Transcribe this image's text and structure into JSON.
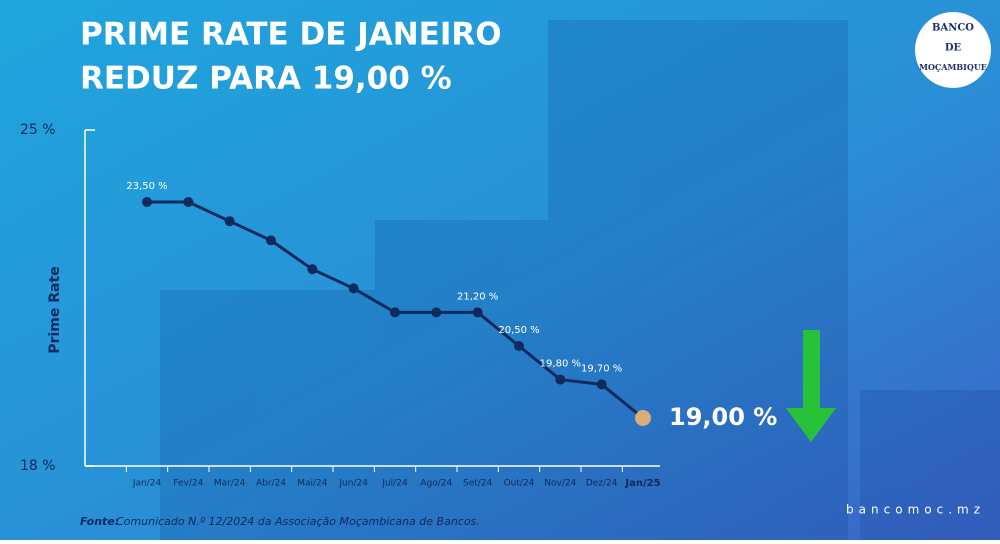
{
  "chart_data": {
    "type": "line",
    "title": [
      "PRIME RATE DE JANEIRO",
      "REDUZ PARA 19,00 %"
    ],
    "y_label": "Prime Rate",
    "categories": [
      "Jan/24",
      "Fev/24",
      "Mar/24",
      "Abr/24",
      "Mai/24",
      "Jun/24",
      "Jul/24",
      "Ago/24",
      "Set/24",
      "Out/24",
      "Nov/24",
      "Dez/24",
      "Jan/25"
    ],
    "values": [
      23.5,
      23.5,
      23.1,
      22.7,
      22.1,
      21.7,
      21.2,
      21.2,
      21.2,
      20.5,
      19.8,
      19.7,
      19.0
    ],
    "value_labels": [
      "23,50 %",
      null,
      null,
      null,
      null,
      null,
      null,
      null,
      "21,20 %",
      "20,50 %",
      "19,80 %",
      "19,70 %",
      "19,00 %"
    ],
    "color": "#0e2a5e",
    "highlight_color": "#d8ad7a",
    "ylim": [
      18,
      25
    ],
    "yticks": [
      {
        "value": 18,
        "label": "18 %"
      },
      {
        "value": 25,
        "label": "25 %"
      }
    ],
    "source_label": "Fonte:",
    "source": "Comunicado N.º 12/2024 da Associação Moçambicana de Bancos.",
    "logo_text": [
      "BANCO",
      "DE",
      "MOÇAMBIQUE"
    ],
    "website": "bancomoc.mz"
  }
}
